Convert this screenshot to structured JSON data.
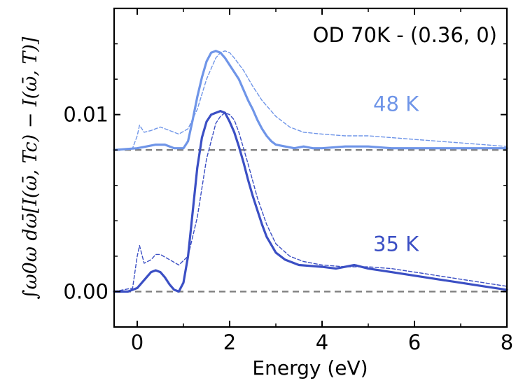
{
  "chart_data": {
    "type": "line",
    "title": "OD 70K - (0.36, 0)",
    "xlabel": "Energy (eV)",
    "ylabel": "∫ω0ω dω̄[I(ω̄, Tc) − I(ω̄, T)]",
    "xlim": [
      -0.5,
      8
    ],
    "ylim": [
      -0.002,
      0.016
    ],
    "xticks": [
      0,
      2,
      4,
      6,
      8
    ],
    "xtick_labels": [
      "0",
      "2",
      "4",
      "6",
      "8"
    ],
    "yticks": [
      0.0,
      0.01
    ],
    "ytick_labels": [
      "0.00",
      "0.01"
    ],
    "grid": false,
    "reference_lines": [
      {
        "y": 0.0,
        "style": "dashed",
        "color": "#808080"
      },
      {
        "y": 0.008,
        "style": "dashed",
        "color": "#808080"
      }
    ],
    "series": [
      {
        "name": "48 K",
        "label": "48 K",
        "color": "#6f95e8",
        "style": "solid",
        "label_pos": [
          5.6,
          0.0102
        ],
        "x": [
          -0.5,
          0.0,
          0.2,
          0.4,
          0.6,
          0.8,
          1.0,
          1.1,
          1.2,
          1.3,
          1.4,
          1.5,
          1.6,
          1.7,
          1.8,
          1.9,
          2.0,
          2.1,
          2.2,
          2.3,
          2.4,
          2.5,
          2.6,
          2.7,
          2.8,
          2.9,
          3.0,
          3.2,
          3.4,
          3.6,
          3.8,
          4.0,
          4.5,
          5.0,
          5.5,
          6.0,
          6.5,
          7.0,
          7.5,
          8.0
        ],
        "y": [
          0.008,
          0.0081,
          0.0082,
          0.0083,
          0.0083,
          0.0081,
          0.0081,
          0.0085,
          0.0097,
          0.011,
          0.0121,
          0.013,
          0.0135,
          0.0136,
          0.0135,
          0.0132,
          0.0128,
          0.0124,
          0.012,
          0.0114,
          0.0108,
          0.0103,
          0.0097,
          0.0092,
          0.0088,
          0.0085,
          0.0083,
          0.0082,
          0.0081,
          0.0082,
          0.0081,
          0.0081,
          0.0082,
          0.0082,
          0.0081,
          0.0081,
          0.0081,
          0.0081,
          0.0081,
          0.0081
        ]
      },
      {
        "name": "48 K (dashed)",
        "color": "#6f95e8",
        "style": "dashed",
        "x": [
          -0.5,
          -0.1,
          0.0,
          0.05,
          0.15,
          0.3,
          0.5,
          0.7,
          0.9,
          1.1,
          1.3,
          1.5,
          1.7,
          1.8,
          1.9,
          2.0,
          2.1,
          2.3,
          2.5,
          2.7,
          3.0,
          3.3,
          3.6,
          4.0,
          4.5,
          5.0,
          5.5,
          6.0,
          6.5,
          7.0,
          7.5,
          8.0
        ],
        "y": [
          0.008,
          0.0081,
          0.0088,
          0.0094,
          0.009,
          0.0091,
          0.0093,
          0.0091,
          0.0089,
          0.0092,
          0.0103,
          0.012,
          0.0132,
          0.0135,
          0.0136,
          0.0135,
          0.0132,
          0.0125,
          0.0116,
          0.0108,
          0.0099,
          0.0093,
          0.009,
          0.0089,
          0.0088,
          0.0088,
          0.0087,
          0.0086,
          0.0085,
          0.0084,
          0.0083,
          0.0082
        ]
      },
      {
        "name": "35 K",
        "label": "35 K",
        "color": "#3b4fc4",
        "style": "solid",
        "label_pos": [
          5.6,
          0.0023
        ],
        "x": [
          -0.5,
          -0.2,
          0.0,
          0.1,
          0.2,
          0.3,
          0.4,
          0.5,
          0.6,
          0.7,
          0.8,
          0.9,
          1.0,
          1.1,
          1.2,
          1.3,
          1.4,
          1.5,
          1.6,
          1.7,
          1.8,
          1.9,
          2.0,
          2.1,
          2.2,
          2.3,
          2.4,
          2.5,
          2.6,
          2.7,
          2.8,
          3.0,
          3.2,
          3.5,
          4.0,
          4.3,
          4.7,
          5.0,
          5.5,
          6.0,
          6.5,
          7.0,
          7.5,
          8.0
        ],
        "y": [
          0.0,
          0.0,
          0.0002,
          0.0005,
          0.0008,
          0.0011,
          0.0012,
          0.0011,
          0.0008,
          0.0004,
          0.0001,
          0.0,
          0.0005,
          0.002,
          0.0045,
          0.007,
          0.0087,
          0.0096,
          0.01,
          0.0101,
          0.0102,
          0.0101,
          0.0096,
          0.009,
          0.0082,
          0.0073,
          0.0063,
          0.0054,
          0.0046,
          0.0038,
          0.0031,
          0.0022,
          0.0018,
          0.0015,
          0.0014,
          0.0013,
          0.0015,
          0.0013,
          0.0011,
          0.0009,
          0.0007,
          0.0005,
          0.0003,
          0.0001
        ]
      },
      {
        "name": "35 K (dashed)",
        "color": "#3b4fc4",
        "style": "dashed",
        "x": [
          -0.5,
          -0.1,
          0.0,
          0.05,
          0.15,
          0.3,
          0.4,
          0.5,
          0.7,
          0.9,
          1.1,
          1.3,
          1.5,
          1.7,
          1.8,
          1.9,
          2.0,
          2.1,
          2.2,
          2.4,
          2.6,
          2.8,
          3.0,
          3.3,
          3.6,
          4.0,
          4.5,
          5.0,
          5.5,
          6.0,
          6.5,
          7.0,
          7.5,
          8.0
        ],
        "y": [
          0.0,
          0.0002,
          0.002,
          0.0026,
          0.0016,
          0.0018,
          0.0021,
          0.0021,
          0.0018,
          0.0015,
          0.002,
          0.0042,
          0.0075,
          0.0095,
          0.0099,
          0.0101,
          0.01,
          0.0097,
          0.009,
          0.0072,
          0.0053,
          0.0038,
          0.0027,
          0.002,
          0.0017,
          0.0015,
          0.0014,
          0.0014,
          0.0013,
          0.0011,
          0.0009,
          0.0007,
          0.0005,
          0.0003
        ]
      }
    ]
  }
}
